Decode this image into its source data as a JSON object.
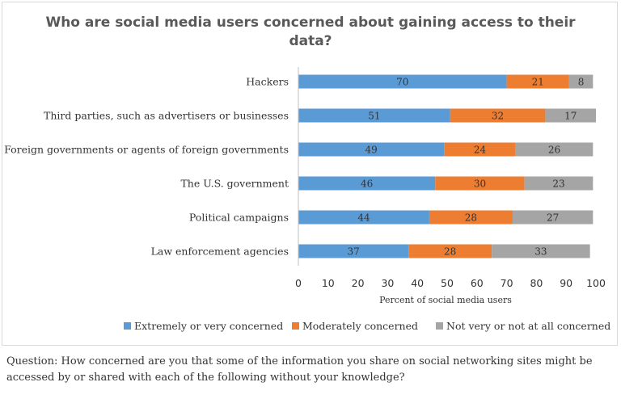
{
  "chart_data": {
    "type": "bar",
    "orientation": "horizontal",
    "stacked": true,
    "title_lines": [
      "Who are social media users concerned about gaining access to their",
      "data?"
    ],
    "categories": [
      "Hackers",
      "Third parties, such as advertisers or businesses",
      "Foreign governments or agents of foreign governments",
      "The U.S. government",
      "Political campaigns",
      "Law enforcement agencies"
    ],
    "series": [
      {
        "name": "Extremely or very concerned",
        "color": "#5b9bd5",
        "values": [
          70,
          51,
          49,
          46,
          44,
          37
        ]
      },
      {
        "name": "Moderately concerned",
        "color": "#ed7d31",
        "values": [
          21,
          32,
          24,
          30,
          28,
          28
        ]
      },
      {
        "name": "Not very or not at all concerned",
        "color": "#a5a5a5",
        "values": [
          8,
          17,
          26,
          23,
          27,
          33
        ]
      }
    ],
    "xlabel": "Percent of social media users",
    "xlim": [
      0,
      100
    ],
    "xticks": [
      "0",
      "10",
      "20",
      "30",
      "40",
      "50",
      "60",
      "70",
      "80",
      "90",
      "100"
    ],
    "legend_position": "bottom",
    "grid": false
  },
  "question": "Question: How concerned are you that some of the information you share on social networking sites might be accessed by or shared with each of the following without your knowledge?"
}
